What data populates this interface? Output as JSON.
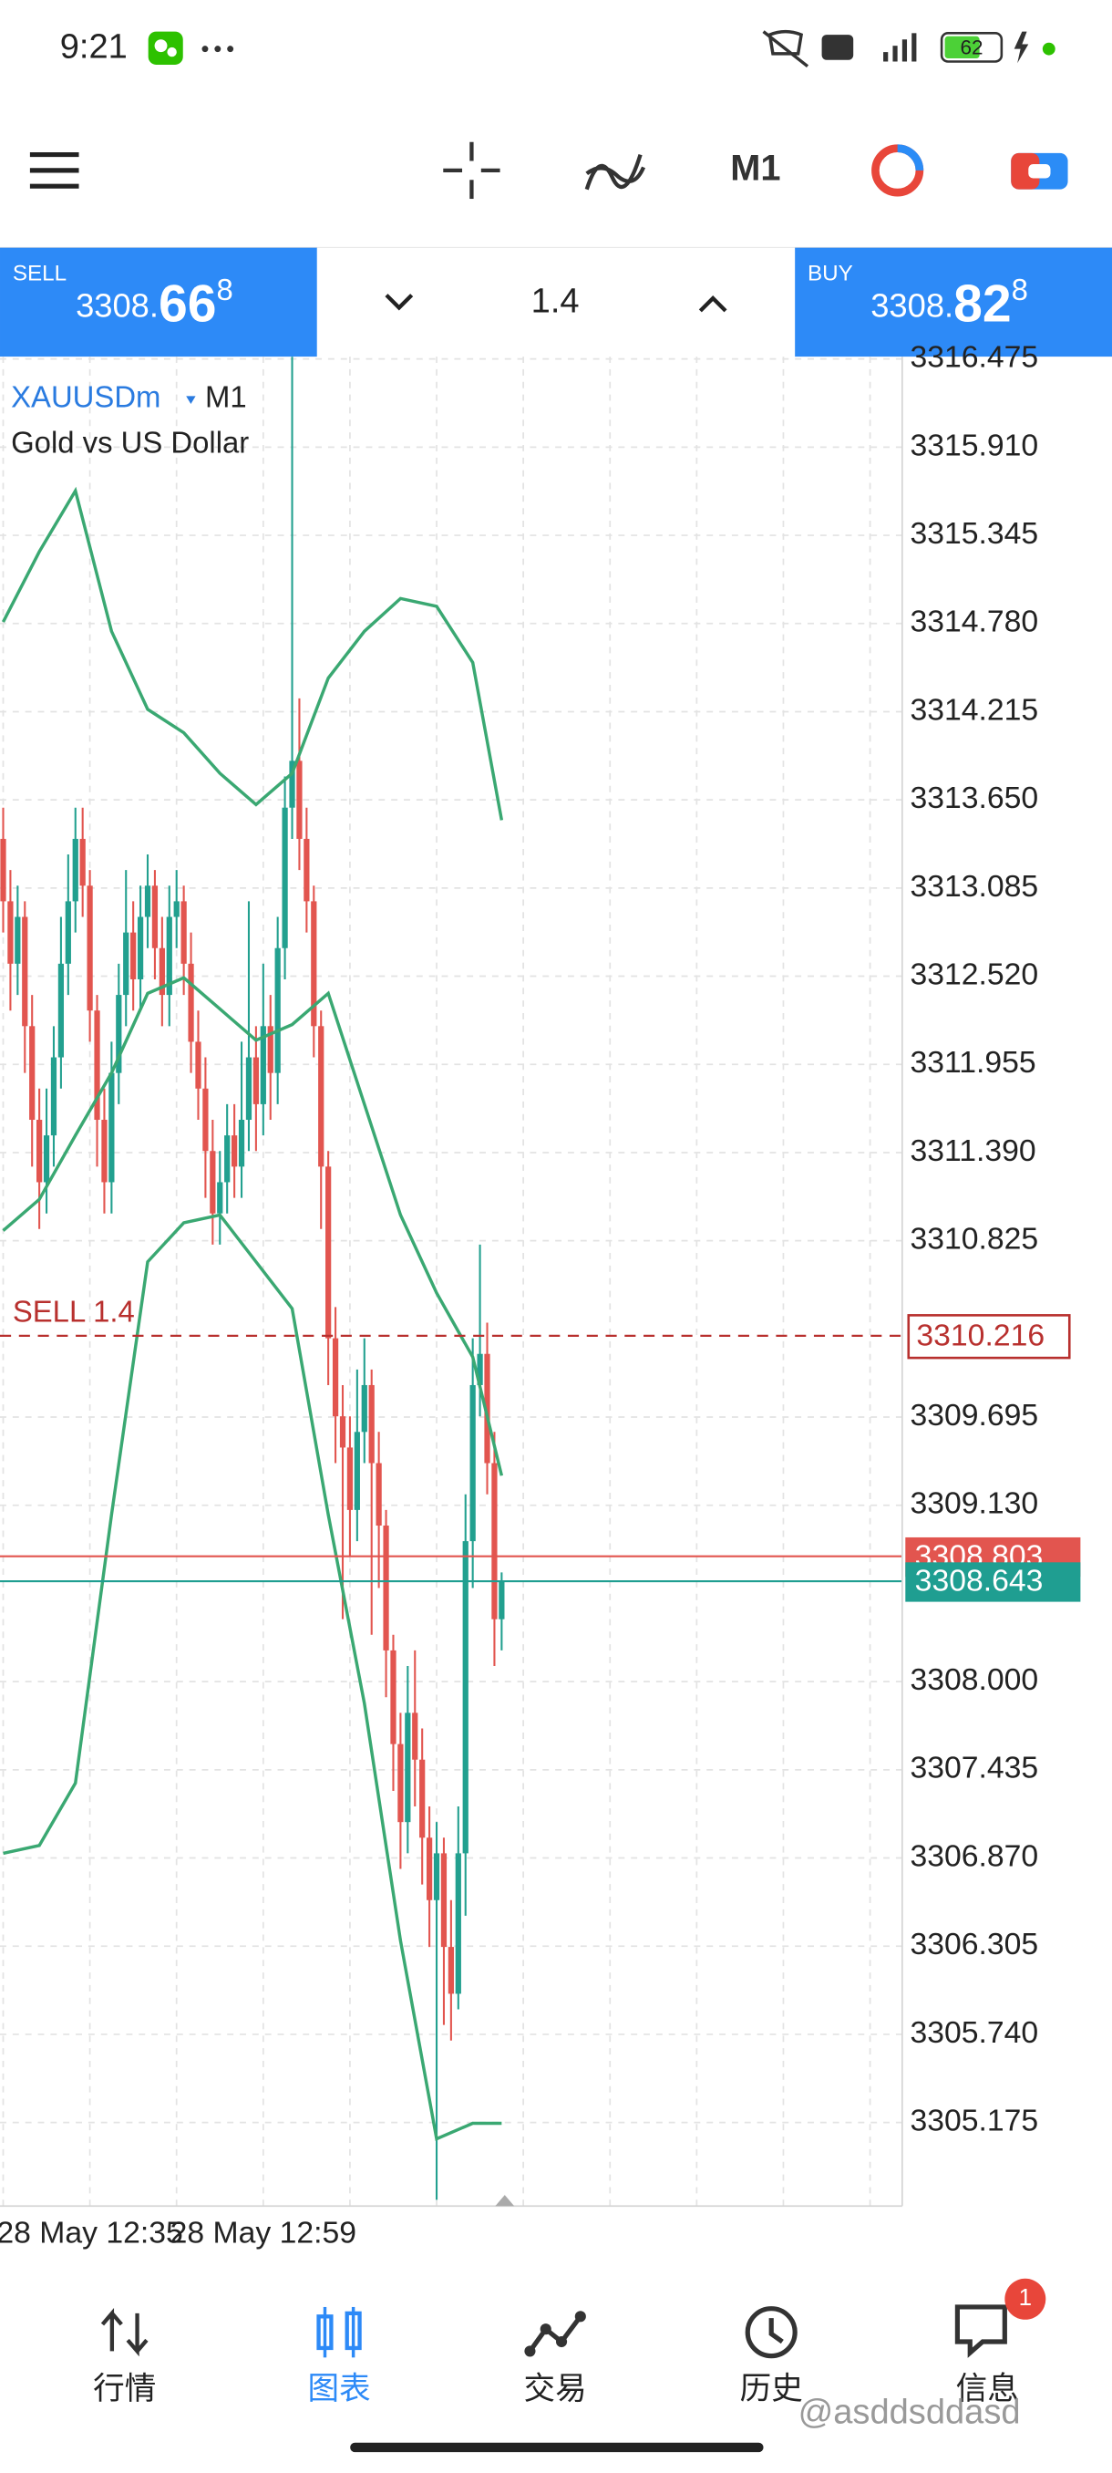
{
  "status_bar": {
    "time": "9:21",
    "battery": "62"
  },
  "toolbar": {
    "timeframe": "M1"
  },
  "trade_panel": {
    "sell": {
      "label": "SELL",
      "price_head": "3308.",
      "price_big": "66",
      "price_tail": "8"
    },
    "volume": "1.4",
    "buy": {
      "label": "BUY",
      "price_head": "3308.",
      "price_big": "82",
      "price_tail": "8"
    }
  },
  "chart_data": {
    "type": "candlestick",
    "symbol": "XAUUSDm",
    "timeframe": "M1",
    "description": "Gold vs US Dollar",
    "up_color": "#22a08f",
    "down_color": "#e2554f",
    "open": [
      3313.4,
      3313.0,
      3312.6,
      3312.9,
      3312.2,
      3311.6,
      3311.2,
      3311.5,
      3312.0,
      3312.6,
      3313.0,
      3313.4,
      3313.1,
      3312.3,
      3311.6,
      3311.2,
      3311.9,
      3312.4,
      3312.8,
      3312.5,
      3312.9,
      3313.1,
      3312.7,
      3312.4,
      3312.9,
      3313.0,
      3312.6,
      3312.1,
      3311.8,
      3311.4,
      3311.0,
      3311.2,
      3311.5,
      3311.3,
      3311.6,
      3312.0,
      3311.7,
      3312.2,
      3311.9,
      3312.7,
      3313.6,
      3313.9,
      3313.4,
      3313.0,
      3312.2,
      3311.3,
      3310.2,
      3309.7,
      3309.5,
      3309.1,
      3309.6,
      3309.9,
      3309.4,
      3309.0,
      3308.2,
      3307.6,
      3307.1,
      3307.8,
      3307.5,
      3307.0,
      3306.6,
      3306.9,
      3306.3,
      3306.0,
      3306.9,
      3308.9,
      3309.9,
      3310.1,
      3309.4,
      3308.4
    ],
    "high": [
      3313.6,
      3313.2,
      3313.1,
      3313.0,
      3312.4,
      3311.8,
      3311.8,
      3312.2,
      3312.9,
      3313.3,
      3313.6,
      3313.6,
      3313.2,
      3312.4,
      3311.8,
      3312.1,
      3312.6,
      3313.2,
      3313.0,
      3313.1,
      3313.3,
      3313.2,
      3312.9,
      3313.1,
      3313.2,
      3313.1,
      3312.8,
      3312.3,
      3312.0,
      3311.6,
      3311.4,
      3311.7,
      3311.7,
      3312.1,
      3313.0,
      3312.2,
      3312.6,
      3312.4,
      3312.9,
      3313.8,
      3316.49,
      3314.3,
      3313.6,
      3313.1,
      3312.3,
      3311.4,
      3310.4,
      3309.9,
      3309.7,
      3310.0,
      3310.2,
      3310.0,
      3309.6,
      3309.1,
      3308.3,
      3307.8,
      3308.1,
      3308.2,
      3307.7,
      3307.2,
      3307.1,
      3307.0,
      3306.6,
      3307.2,
      3309.2,
      3310.2,
      3310.8,
      3310.3,
      3309.6,
      3308.7
    ],
    "low": [
      3312.8,
      3312.3,
      3312.4,
      3311.9,
      3311.3,
      3310.9,
      3311.0,
      3311.3,
      3311.8,
      3312.4,
      3312.8,
      3312.9,
      3312.1,
      3311.3,
      3311.0,
      3311.0,
      3311.7,
      3312.2,
      3312.3,
      3312.3,
      3312.7,
      3312.5,
      3312.2,
      3312.2,
      3312.7,
      3312.4,
      3311.9,
      3311.6,
      3311.1,
      3310.8,
      3310.8,
      3311.0,
      3311.1,
      3311.1,
      3311.4,
      3311.4,
      3311.5,
      3311.6,
      3311.7,
      3312.5,
      3313.4,
      3313.2,
      3312.8,
      3312.0,
      3310.9,
      3309.9,
      3309.4,
      3308.4,
      3308.8,
      3308.9,
      3309.4,
      3308.3,
      3308.6,
      3307.9,
      3307.3,
      3306.8,
      3306.9,
      3307.2,
      3306.7,
      3306.3,
      3304.68,
      3305.8,
      3305.7,
      3305.9,
      3306.5,
      3308.6,
      3309.7,
      3309.2,
      3308.1,
      3308.2
    ],
    "close": [
      3313.0,
      3312.6,
      3312.9,
      3312.2,
      3311.6,
      3311.2,
      3311.5,
      3312.0,
      3312.6,
      3313.0,
      3313.4,
      3313.1,
      3312.3,
      3311.6,
      3311.2,
      3311.9,
      3312.4,
      3312.8,
      3312.5,
      3312.9,
      3313.1,
      3312.7,
      3312.4,
      3312.9,
      3313.0,
      3312.6,
      3312.1,
      3311.8,
      3311.4,
      3311.0,
      3311.2,
      3311.5,
      3311.3,
      3311.6,
      3312.0,
      3311.7,
      3312.2,
      3311.9,
      3312.7,
      3313.6,
      3313.9,
      3313.4,
      3313.0,
      3312.2,
      3311.3,
      3310.2,
      3309.7,
      3309.5,
      3309.1,
      3309.6,
      3309.9,
      3309.4,
      3309.0,
      3308.2,
      3307.6,
      3307.1,
      3307.8,
      3307.5,
      3307.0,
      3306.6,
      3306.9,
      3306.3,
      3306.0,
      3306.9,
      3308.9,
      3309.9,
      3310.1,
      3309.4,
      3308.4,
      3308.64
    ],
    "bands": {
      "color": "#3aa872",
      "x": [
        0,
        5,
        10,
        15,
        20,
        25,
        30,
        35,
        40,
        45,
        50,
        55,
        60,
        65,
        69
      ],
      "upper": [
        3314.79,
        3315.24,
        3315.63,
        3314.73,
        3314.23,
        3314.08,
        3313.82,
        3313.62,
        3313.82,
        3314.43,
        3314.73,
        3314.94,
        3314.89,
        3314.53,
        3313.52
      ],
      "middle": [
        3310.89,
        3311.09,
        3311.5,
        3311.9,
        3312.41,
        3312.51,
        3312.31,
        3312.11,
        3312.21,
        3312.41,
        3311.7,
        3310.99,
        3310.49,
        3310.08,
        3309.32
      ],
      "lower": [
        3306.9,
        3306.95,
        3307.35,
        3309.07,
        3310.69,
        3310.94,
        3310.99,
        3310.69,
        3310.39,
        3309.07,
        3307.86,
        3306.34,
        3305.07,
        3305.17,
        3305.17
      ]
    },
    "order": {
      "label": "SELL 1.4",
      "price": 3310.216,
      "color": "#b8302e"
    },
    "ask": {
      "price": 3308.803,
      "color": "#e2554f"
    },
    "bid": {
      "price": 3308.643,
      "color": "#1f9e91"
    },
    "xlim": [
      -0.44,
      124.45
    ],
    "xticks": [
      {
        "value": 12,
        "label": "28 May 12:35"
      },
      {
        "value": 36,
        "label": "28 May 12:59"
      }
    ],
    "ylim": [
      3304.64,
      3316.49
    ],
    "yticks": [
      3316.475,
      {
        "value": 3315.91,
        "label": "3315.910"
      },
      3315.345,
      {
        "value": 3314.78,
        "label": "3314.780"
      },
      3314.215,
      {
        "value": 3313.65,
        "label": "3313.650"
      },
      3313.085,
      {
        "value": 3312.52,
        "label": "3312.520"
      },
      3311.955,
      {
        "value": 3311.39,
        "label": "3311.390"
      },
      3310.825,
      3309.695,
      {
        "value": 3309.13,
        "label": "3309.130"
      },
      {
        "value": 3308.0,
        "label": "3308.000"
      },
      3307.435,
      {
        "value": 3306.87,
        "label": "3306.870"
      },
      3306.305,
      {
        "value": 3305.74,
        "label": "3305.740"
      },
      3305.175
    ],
    "grid": true
  },
  "nav": {
    "items": [
      "行情",
      "图表",
      "交易",
      "历史",
      "信息"
    ],
    "active": 1,
    "badge": "1"
  },
  "watermark": "@asddsddasd"
}
